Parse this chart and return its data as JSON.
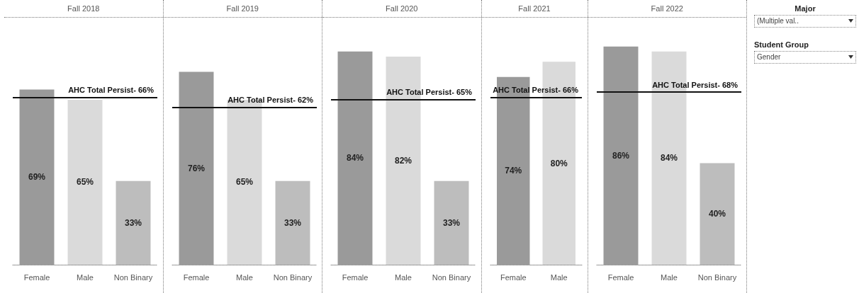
{
  "chart_data": [
    {
      "type": "bar",
      "title": "Fall 2018",
      "categories": [
        "Female",
        "Male",
        "Non Binary"
      ],
      "values": [
        69,
        65,
        33
      ],
      "value_labels": [
        "69%",
        "65%",
        "33%"
      ],
      "colors": [
        "#9a9a9a",
        "#dadada",
        "#bdbdbd"
      ],
      "ref_lines": [
        {
          "axis": "y",
          "value": 66,
          "label": "AHC Total Persist- 66%",
          "color": "#111111"
        }
      ],
      "grid": false
    },
    {
      "type": "bar",
      "title": "Fall 2019",
      "categories": [
        "Female",
        "Male",
        "Non Binary"
      ],
      "values": [
        76,
        65,
        33
      ],
      "value_labels": [
        "76%",
        "65%",
        "33%"
      ],
      "colors": [
        "#9a9a9a",
        "#dadada",
        "#bdbdbd"
      ],
      "ref_lines": [
        {
          "axis": "y",
          "value": 62,
          "label": "AHC Total Persist- 62%",
          "color": "#111111"
        }
      ],
      "grid": false
    },
    {
      "type": "bar",
      "title": "Fall 2020",
      "categories": [
        "Female",
        "Male",
        "Non Binary"
      ],
      "values": [
        84,
        82,
        33
      ],
      "value_labels": [
        "84%",
        "82%",
        "33%"
      ],
      "colors": [
        "#9a9a9a",
        "#dadada",
        "#bdbdbd"
      ],
      "ref_lines": [
        {
          "axis": "y",
          "value": 65,
          "label": "AHC Total Persist- 65%",
          "color": "#111111"
        }
      ],
      "grid": false
    },
    {
      "type": "bar",
      "title": "Fall 2021",
      "categories": [
        "Female",
        "Male"
      ],
      "values": [
        74,
        80
      ],
      "value_labels": [
        "74%",
        "80%"
      ],
      "colors": [
        "#9a9a9a",
        "#dadada"
      ],
      "ref_lines": [
        {
          "axis": "y",
          "value": 66,
          "label": "AHC Total Persist- 66%",
          "color": "#111111"
        }
      ],
      "grid": false
    },
    {
      "type": "bar",
      "title": "Fall 2022",
      "categories": [
        "Female",
        "Male",
        "Non Binary"
      ],
      "values": [
        86,
        84,
        40
      ],
      "value_labels": [
        "86%",
        "84%",
        "40%"
      ],
      "colors": [
        "#9a9a9a",
        "#dadada",
        "#bdbdbd"
      ],
      "ref_lines": [
        {
          "axis": "y",
          "value": 68,
          "label": "AHC Total Persist- 68%",
          "color": "#111111"
        }
      ],
      "grid": false
    },
    {
      "type": "other",
      "annotations": [
        "Major",
        "(Multiple val..",
        "Student Group",
        "Gender"
      ]
    }
  ]
}
